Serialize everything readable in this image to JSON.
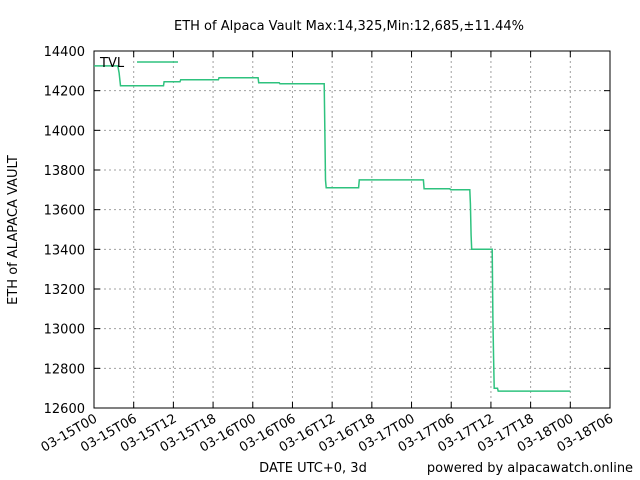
{
  "chart_data": {
    "type": "line",
    "title": "ETH of Alpaca Vault Max:14,325,Min:12,685,±11.44%",
    "xlabel": "DATE UTC+0, 3d",
    "ylabel": "ETH of ALAPACA VAULT",
    "footer": "powered by alpacawatch.online",
    "ylim": [
      12600,
      14400
    ],
    "xlim_hours": [
      0,
      72
    ],
    "yticks": [
      12600,
      12800,
      13000,
      13200,
      13400,
      13600,
      13800,
      14000,
      14200,
      14400
    ],
    "xticks": [
      "03-15T00",
      "03-15T06",
      "03-15T12",
      "03-15T18",
      "03-16T00",
      "03-16T06",
      "03-16T12",
      "03-16T18",
      "03-17T00",
      "03-17T06",
      "03-17T12",
      "03-17T18",
      "03-18T00",
      "03-18T06"
    ],
    "grid": true,
    "legend_position": "top-left",
    "series": [
      {
        "name": "TVL",
        "color": "#2ec27e",
        "x_hours": [
          0,
          3.6,
          3.8,
          4.0,
          10.5,
          10.6,
          13.0,
          13.1,
          18.8,
          18.9,
          24.8,
          24.9,
          28.0,
          28.1,
          31.0,
          31.1,
          34.8,
          34.9,
          35.0,
          35.1,
          40.0,
          40.1,
          49.8,
          49.9,
          53.8,
          53.9,
          56.8,
          56.9,
          57.0,
          57.1,
          60.2,
          60.3,
          60.4,
          60.5,
          61.0,
          61.1,
          72.0
        ],
        "y": [
          14325,
          14325,
          14290,
          14225,
          14225,
          14245,
          14245,
          14255,
          14255,
          14265,
          14265,
          14240,
          14240,
          14235,
          14235,
          14235,
          14235,
          13980,
          13750,
          13710,
          13710,
          13750,
          13750,
          13705,
          13705,
          13700,
          13700,
          13630,
          13470,
          13400,
          13400,
          13050,
          12850,
          12700,
          12700,
          12685,
          12685
        ]
      }
    ]
  }
}
